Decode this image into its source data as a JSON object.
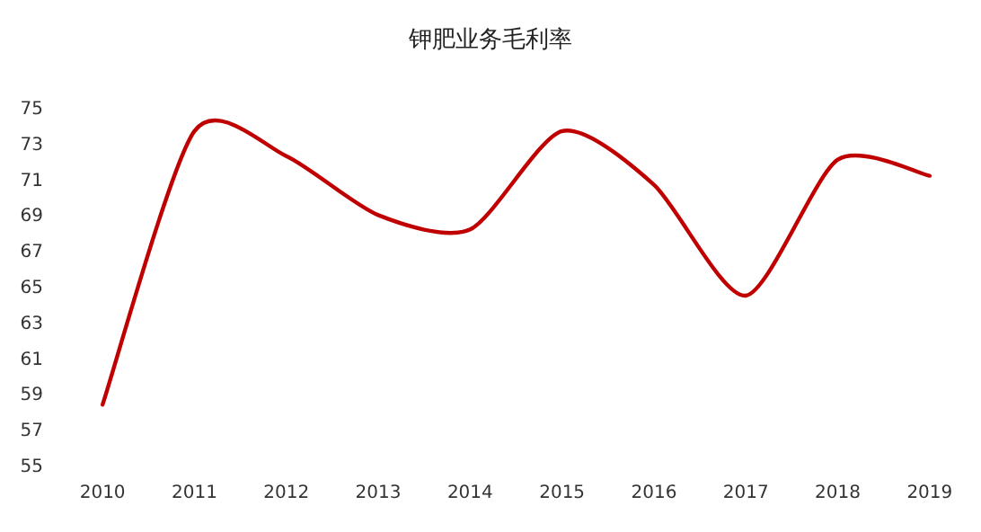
{
  "chart_data": {
    "type": "line",
    "title": "钾肥业务毛利率",
    "categories": [
      "2010",
      "2011",
      "2012",
      "2013",
      "2014",
      "2015",
      "2016",
      "2017",
      "2018",
      "2019"
    ],
    "series": [
      {
        "color": "#c00000",
        "values": [
          58.4,
          73.7,
          72.3,
          69.0,
          68.2,
          73.7,
          70.7,
          64.5,
          72.1,
          71.2
        ]
      }
    ],
    "ylim": [
      55,
      75
    ],
    "yticks": [
      55,
      57,
      59,
      61,
      63,
      65,
      67,
      69,
      71,
      73,
      75
    ],
    "grid": false,
    "marker": "none",
    "line_style": "solid"
  }
}
